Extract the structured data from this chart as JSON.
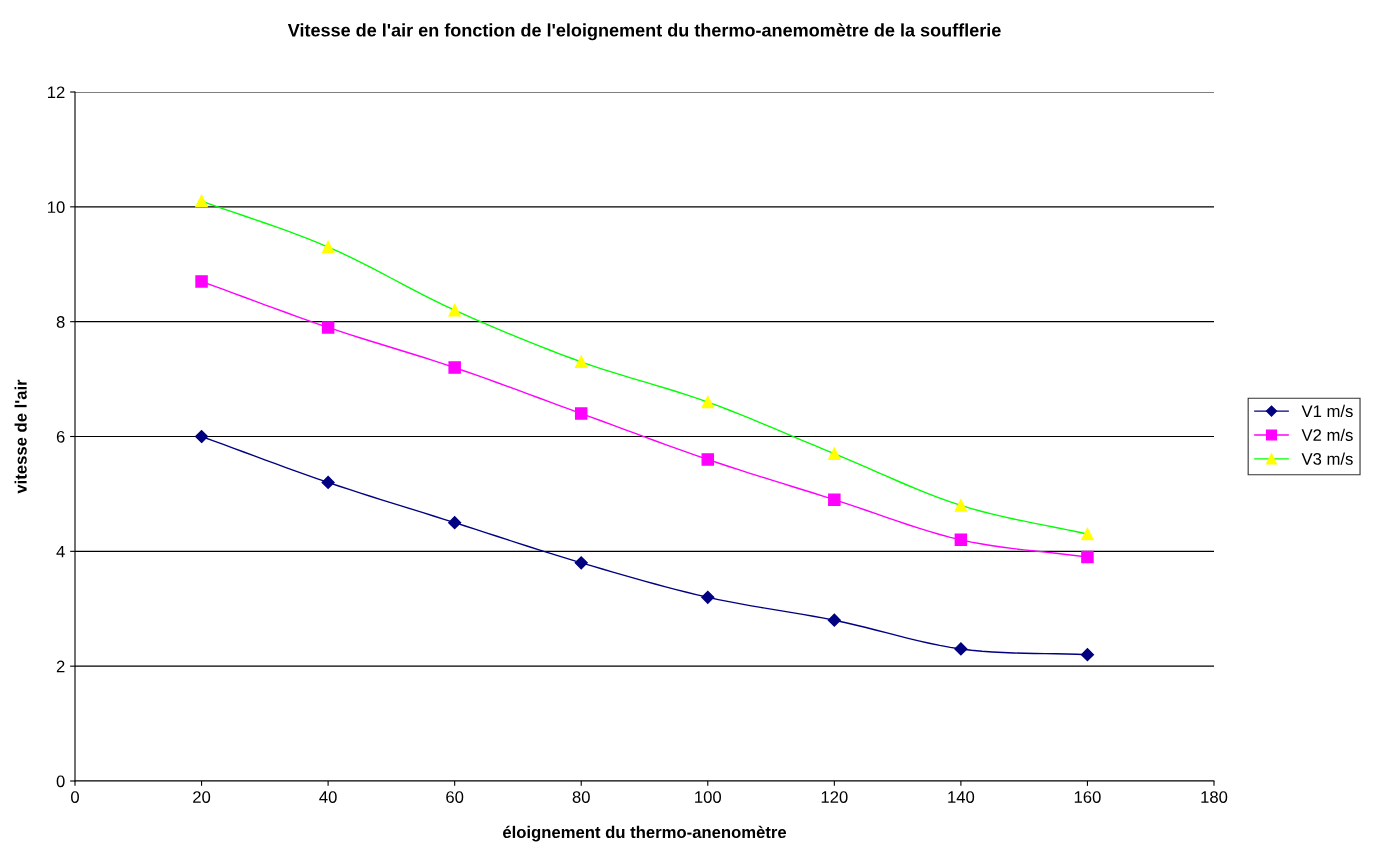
{
  "chart_data": {
    "type": "line",
    "title": "Vitesse de l'air en fonction de l'eloignement du thermo-anemomètre de la soufflerie",
    "xlabel": "éloignement du thermo-anenomètre",
    "ylabel": "vitesse de l'air",
    "x": [
      20,
      40,
      60,
      80,
      100,
      120,
      140,
      160
    ],
    "series": [
      {
        "name": "V1 m/s",
        "color": "#000080",
        "marker": "diamond",
        "values": [
          6.0,
          5.2,
          4.5,
          3.8,
          3.2,
          2.8,
          2.3,
          2.2
        ]
      },
      {
        "name": "V2 m/s",
        "color": "#ff00ff",
        "marker": "square",
        "values": [
          8.7,
          7.9,
          7.2,
          6.4,
          5.6,
          4.9,
          4.2,
          3.9
        ]
      },
      {
        "name": "V3 m/s",
        "color": "#00ff00",
        "colors": [
          "#ffff00",
          "#ffff00",
          "#ffff00",
          "#ffff00",
          "#ffff00",
          "#ffff00",
          "#ffff00",
          "#ffff00"
        ],
        "marker": "triangle",
        "values": [
          10.1,
          9.3,
          8.2,
          7.3,
          6.6,
          5.7,
          4.8,
          4.3
        ]
      }
    ],
    "xlim": [
      0,
      180
    ],
    "xticks": [
      0,
      20,
      40,
      60,
      80,
      100,
      120,
      140,
      160,
      180
    ],
    "ylim": [
      0,
      12
    ],
    "yticks": [
      0,
      2,
      4,
      6,
      8,
      10,
      12
    ],
    "grid": "y",
    "legend": "right",
    "line_style": "solid"
  }
}
